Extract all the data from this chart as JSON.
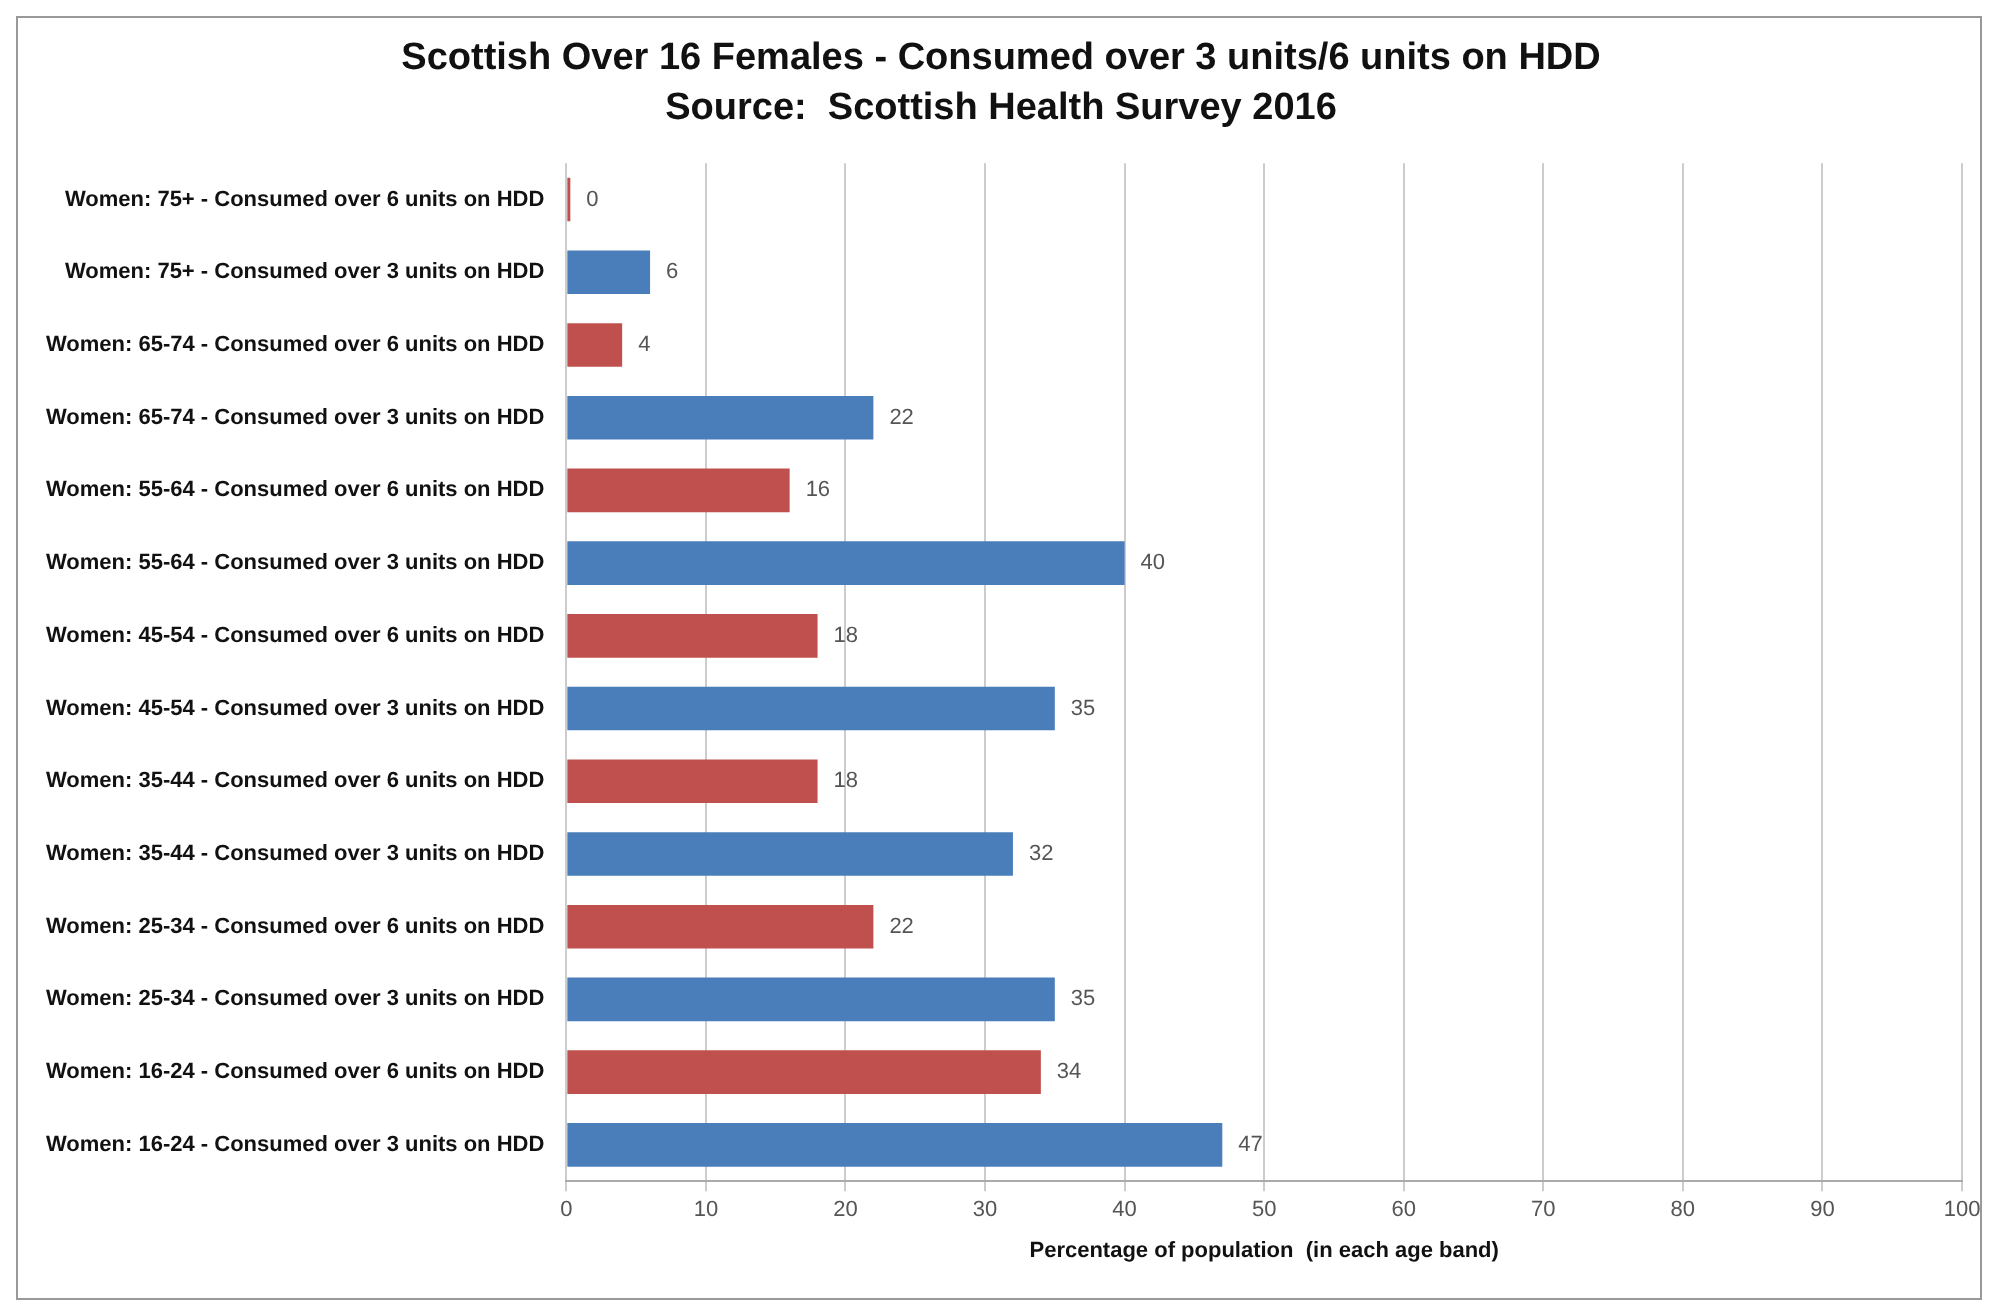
{
  "chart_data": {
    "type": "bar",
    "orientation": "horizontal",
    "title": "Scottish Over 16 Females - Consumed over 3 units/6 units on HDD",
    "subtitle": "Source:  Scottish Health Survey 2016",
    "xlabel": "Percentage of population  (in each age band)",
    "categories": [
      "Women: 75+ - Consumed over 6 units on HDD",
      "Women: 75+ - Consumed over 3 units on HDD",
      "Women: 65-74 - Consumed over 6 units on HDD",
      "Women: 65-74 - Consumed over 3 units on HDD",
      "Women: 55-64 - Consumed over 6 units on HDD",
      "Women: 55-64 - Consumed over 3 units on HDD",
      "Women: 45-54 - Consumed over 6 units on HDD",
      "Women: 45-54 - Consumed over 3 units on HDD",
      "Women: 35-44 - Consumed over 6 units on HDD",
      "Women: 35-44 - Consumed over 3 units on HDD",
      "Women: 25-34 - Consumed over 6 units on HDD",
      "Women: 25-34 - Consumed over 3 units on HDD",
      "Women: 16-24 - Consumed over 6 units on HDD",
      "Women: 16-24 - Consumed over 3 units on HDD"
    ],
    "values": [
      0,
      6,
      4,
      22,
      16,
      40,
      18,
      35,
      18,
      32,
      22,
      35,
      34,
      47
    ],
    "colors": [
      "#c0504d",
      "#4a7ebb",
      "#c0504d",
      "#4a7ebb",
      "#c0504d",
      "#4a7ebb",
      "#c0504d",
      "#4a7ebb",
      "#c0504d",
      "#4a7ebb",
      "#c0504d",
      "#4a7ebb",
      "#c0504d",
      "#4a7ebb"
    ],
    "xlim": [
      0,
      100
    ],
    "xticks": [
      0,
      10,
      20,
      30,
      40,
      50,
      60,
      70,
      80,
      90,
      100
    ],
    "grid": "x",
    "data_labels": true,
    "legend": false
  }
}
